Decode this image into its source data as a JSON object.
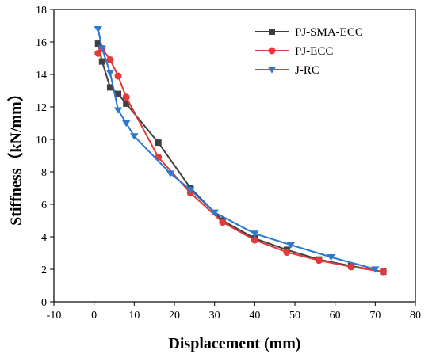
{
  "chart_data": {
    "type": "line",
    "xlabel": "Displacement (mm)",
    "ylabel": "Stiffness（kN/mm）",
    "xlim": [
      -10,
      80
    ],
    "ylim": [
      0,
      18
    ],
    "xticks": [
      "-10",
      "0",
      "10",
      "20",
      "30",
      "40",
      "50",
      "60",
      "70",
      "80"
    ],
    "yticks": [
      "0",
      "2",
      "4",
      "6",
      "8",
      "10",
      "12",
      "14",
      "16",
      "18"
    ],
    "grid": false,
    "legend_position": "top-right",
    "series": [
      {
        "name": "PJ-SMA-ECC",
        "color": "#404040",
        "marker": "square",
        "x": [
          1,
          2,
          4,
          6,
          8,
          16,
          24,
          32,
          40,
          48,
          56,
          64,
          72
        ],
        "y": [
          15.9,
          14.8,
          13.2,
          12.8,
          12.2,
          9.8,
          7.0,
          5.0,
          3.9,
          3.2,
          2.6,
          2.2,
          1.85
        ]
      },
      {
        "name": "PJ-ECC",
        "color": "#e03a3a",
        "marker": "circle",
        "x": [
          1,
          2,
          4,
          6,
          8,
          16,
          24,
          32,
          40,
          48,
          56,
          64,
          72
        ],
        "y": [
          15.3,
          15.6,
          14.9,
          13.9,
          12.6,
          8.9,
          6.7,
          4.9,
          3.8,
          3.05,
          2.55,
          2.15,
          1.85
        ]
      },
      {
        "name": "J-RC",
        "color": "#2b78d0",
        "marker": "triangle-down",
        "x": [
          1,
          2,
          4,
          6,
          8,
          10,
          19,
          24,
          30,
          40,
          49,
          59,
          70
        ],
        "y": [
          16.8,
          15.6,
          14.1,
          11.8,
          11.0,
          10.2,
          7.9,
          6.9,
          5.5,
          4.2,
          3.5,
          2.75,
          2.0
        ]
      }
    ]
  }
}
